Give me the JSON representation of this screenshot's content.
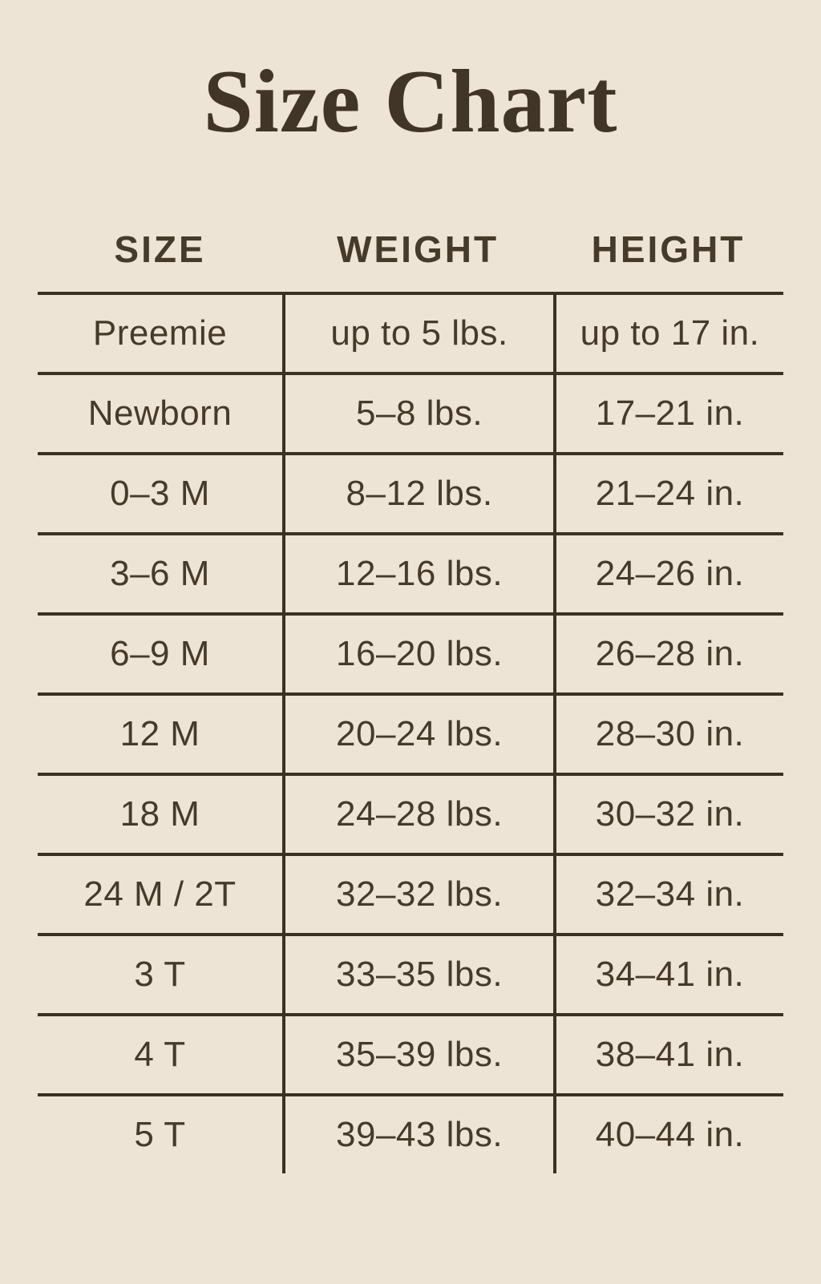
{
  "page": {
    "background_color": "#ede4d5",
    "text_color": "#463a2a",
    "line_color": "#3b3022"
  },
  "title": "Size Chart",
  "table": {
    "headers": [
      "SIZE",
      "WEIGHT",
      "HEIGHT"
    ]
  },
  "chart_data": {
    "type": "table",
    "title": "Size Chart",
    "columns": [
      "SIZE",
      "WEIGHT",
      "HEIGHT"
    ],
    "rows": [
      [
        "Preemie",
        "up to 5 lbs.",
        "up to 17 in."
      ],
      [
        "Newborn",
        "5–8 lbs.",
        "17–21 in."
      ],
      [
        "0–3 M",
        "8–12 lbs.",
        "21–24 in."
      ],
      [
        "3–6 M",
        "12–16 lbs.",
        "24–26 in."
      ],
      [
        "6–9 M",
        "16–20 lbs.",
        "26–28 in."
      ],
      [
        "12 M",
        "20–24 lbs.",
        "28–30 in."
      ],
      [
        "18 M",
        "24–28 lbs.",
        "30–32 in."
      ],
      [
        "24 M / 2T",
        "32–32 lbs.",
        "32–34 in."
      ],
      [
        "3 T",
        "33–35 lbs.",
        "34–41 in."
      ],
      [
        "4 T",
        "35–39 lbs.",
        "38–41 in."
      ],
      [
        "5 T",
        "39–43 lbs.",
        "40–44 in."
      ]
    ],
    "layout": {
      "grid": "horizontal row separators and vertical column dividers, no outer left/right/bottom border",
      "column_alignment": "center"
    }
  }
}
